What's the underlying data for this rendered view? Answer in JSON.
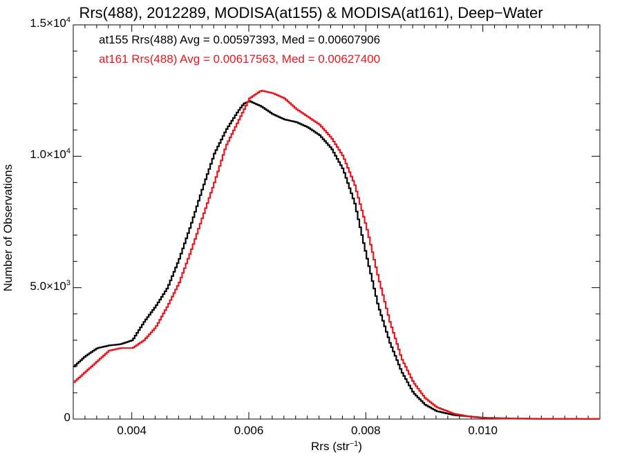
{
  "chart_data": {
    "type": "line",
    "title": "Rrs(488), 2012289, MODISA(at155) & MODISA(at161), Deep−Water",
    "xlabel": "Rrs (str",
    "xlabel_sup": "−1",
    "xlabel_end": ")",
    "ylabel": "Number of Observations",
    "xlim": [
      0.003,
      0.012
    ],
    "ylim": [
      0,
      15000
    ],
    "x_ticks": [
      {
        "value": 0.004,
        "label": "0.004"
      },
      {
        "value": 0.006,
        "label": "0.006"
      },
      {
        "value": 0.008,
        "label": "0.008"
      },
      {
        "value": 0.01,
        "label": "0.010"
      }
    ],
    "y_ticks": [
      {
        "value": 0,
        "base": "0",
        "exp": ""
      },
      {
        "value": 5000,
        "base": "5.0×10",
        "exp": "3"
      },
      {
        "value": 10000,
        "base": "1.0×10",
        "exp": "4"
      },
      {
        "value": 15000,
        "base": "1.5×10",
        "exp": "4"
      }
    ],
    "grid": false,
    "series": [
      {
        "name": "at155",
        "color": "#000000",
        "legend": "at155 Rrs(488) Avg = 0.00597393, Med = 0.00607906",
        "x": [
          0.003,
          0.0032,
          0.0034,
          0.0036,
          0.0038,
          0.004,
          0.0042,
          0.0044,
          0.0046,
          0.0048,
          0.005,
          0.0052,
          0.0054,
          0.0056,
          0.0058,
          0.0059,
          0.006,
          0.0062,
          0.0064,
          0.0066,
          0.0068,
          0.007,
          0.0072,
          0.0074,
          0.0076,
          0.0078,
          0.008,
          0.0082,
          0.0084,
          0.0086,
          0.0088,
          0.009,
          0.0092,
          0.0095,
          0.01,
          0.0105,
          0.011,
          0.012
        ],
        "y": [
          2000,
          2400,
          2700,
          2800,
          2850,
          3000,
          3700,
          4300,
          5000,
          6100,
          7400,
          8800,
          10100,
          11000,
          11700,
          12000,
          12100,
          11900,
          11600,
          11400,
          11300,
          11100,
          10800,
          10300,
          9500,
          8200,
          6200,
          4300,
          2900,
          1800,
          1000,
          550,
          300,
          150,
          50,
          20,
          10,
          5
        ]
      },
      {
        "name": "at161",
        "color": "#e8151b",
        "legend": "at161 Rrs(488) Avg = 0.00617563, Med = 0.00627400",
        "x": [
          0.003,
          0.0032,
          0.0034,
          0.0036,
          0.0038,
          0.004,
          0.0042,
          0.0044,
          0.0046,
          0.0048,
          0.005,
          0.0052,
          0.0054,
          0.0056,
          0.0058,
          0.006,
          0.0062,
          0.0064,
          0.0066,
          0.0068,
          0.007,
          0.0072,
          0.0074,
          0.0076,
          0.0078,
          0.008,
          0.0082,
          0.0084,
          0.0086,
          0.0088,
          0.009,
          0.0092,
          0.0095,
          0.0098,
          0.01,
          0.0105,
          0.011,
          0.012
        ],
        "y": [
          1400,
          1800,
          2200,
          2600,
          2700,
          2700,
          3000,
          3500,
          4300,
          5200,
          6400,
          7700,
          9000,
          10400,
          11300,
          12200,
          12500,
          12400,
          12200,
          11800,
          11500,
          11200,
          10700,
          10000,
          8900,
          7300,
          5400,
          3700,
          2300,
          1400,
          800,
          450,
          200,
          80,
          40,
          15,
          8,
          3
        ]
      }
    ]
  }
}
